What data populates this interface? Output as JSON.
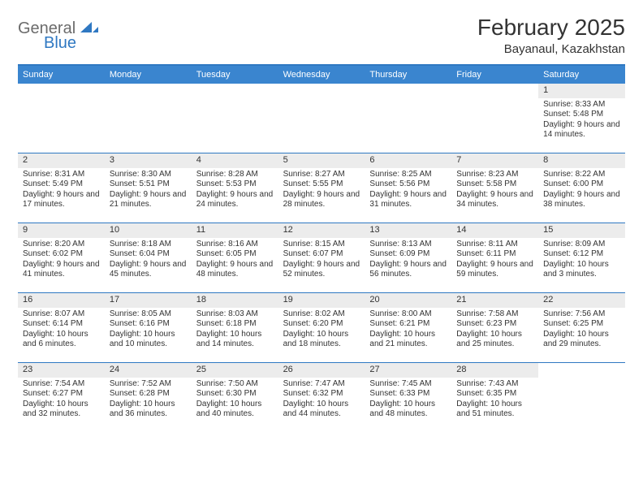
{
  "logo": {
    "word1": "General",
    "word2": "Blue"
  },
  "colors": {
    "brand_blue": "#3a85cf",
    "rule_blue": "#2f78c2",
    "grey_text": "#6b6b6b",
    "daynum_bg": "#ececec",
    "text": "#333333",
    "background": "#ffffff"
  },
  "title": "February 2025",
  "location": "Bayanaul, Kazakhstan",
  "weekdays": [
    "Sunday",
    "Monday",
    "Tuesday",
    "Wednesday",
    "Thursday",
    "Friday",
    "Saturday"
  ],
  "weeks": [
    [
      {
        "empty": true
      },
      {
        "empty": true
      },
      {
        "empty": true
      },
      {
        "empty": true
      },
      {
        "empty": true
      },
      {
        "empty": true
      },
      {
        "day": "1",
        "sunrise": "Sunrise: 8:33 AM",
        "sunset": "Sunset: 5:48 PM",
        "daylight": "Daylight: 9 hours and 14 minutes."
      }
    ],
    [
      {
        "day": "2",
        "sunrise": "Sunrise: 8:31 AM",
        "sunset": "Sunset: 5:49 PM",
        "daylight": "Daylight: 9 hours and 17 minutes."
      },
      {
        "day": "3",
        "sunrise": "Sunrise: 8:30 AM",
        "sunset": "Sunset: 5:51 PM",
        "daylight": "Daylight: 9 hours and 21 minutes."
      },
      {
        "day": "4",
        "sunrise": "Sunrise: 8:28 AM",
        "sunset": "Sunset: 5:53 PM",
        "daylight": "Daylight: 9 hours and 24 minutes."
      },
      {
        "day": "5",
        "sunrise": "Sunrise: 8:27 AM",
        "sunset": "Sunset: 5:55 PM",
        "daylight": "Daylight: 9 hours and 28 minutes."
      },
      {
        "day": "6",
        "sunrise": "Sunrise: 8:25 AM",
        "sunset": "Sunset: 5:56 PM",
        "daylight": "Daylight: 9 hours and 31 minutes."
      },
      {
        "day": "7",
        "sunrise": "Sunrise: 8:23 AM",
        "sunset": "Sunset: 5:58 PM",
        "daylight": "Daylight: 9 hours and 34 minutes."
      },
      {
        "day": "8",
        "sunrise": "Sunrise: 8:22 AM",
        "sunset": "Sunset: 6:00 PM",
        "daylight": "Daylight: 9 hours and 38 minutes."
      }
    ],
    [
      {
        "day": "9",
        "sunrise": "Sunrise: 8:20 AM",
        "sunset": "Sunset: 6:02 PM",
        "daylight": "Daylight: 9 hours and 41 minutes."
      },
      {
        "day": "10",
        "sunrise": "Sunrise: 8:18 AM",
        "sunset": "Sunset: 6:04 PM",
        "daylight": "Daylight: 9 hours and 45 minutes."
      },
      {
        "day": "11",
        "sunrise": "Sunrise: 8:16 AM",
        "sunset": "Sunset: 6:05 PM",
        "daylight": "Daylight: 9 hours and 48 minutes."
      },
      {
        "day": "12",
        "sunrise": "Sunrise: 8:15 AM",
        "sunset": "Sunset: 6:07 PM",
        "daylight": "Daylight: 9 hours and 52 minutes."
      },
      {
        "day": "13",
        "sunrise": "Sunrise: 8:13 AM",
        "sunset": "Sunset: 6:09 PM",
        "daylight": "Daylight: 9 hours and 56 minutes."
      },
      {
        "day": "14",
        "sunrise": "Sunrise: 8:11 AM",
        "sunset": "Sunset: 6:11 PM",
        "daylight": "Daylight: 9 hours and 59 minutes."
      },
      {
        "day": "15",
        "sunrise": "Sunrise: 8:09 AM",
        "sunset": "Sunset: 6:12 PM",
        "daylight": "Daylight: 10 hours and 3 minutes."
      }
    ],
    [
      {
        "day": "16",
        "sunrise": "Sunrise: 8:07 AM",
        "sunset": "Sunset: 6:14 PM",
        "daylight": "Daylight: 10 hours and 6 minutes."
      },
      {
        "day": "17",
        "sunrise": "Sunrise: 8:05 AM",
        "sunset": "Sunset: 6:16 PM",
        "daylight": "Daylight: 10 hours and 10 minutes."
      },
      {
        "day": "18",
        "sunrise": "Sunrise: 8:03 AM",
        "sunset": "Sunset: 6:18 PM",
        "daylight": "Daylight: 10 hours and 14 minutes."
      },
      {
        "day": "19",
        "sunrise": "Sunrise: 8:02 AM",
        "sunset": "Sunset: 6:20 PM",
        "daylight": "Daylight: 10 hours and 18 minutes."
      },
      {
        "day": "20",
        "sunrise": "Sunrise: 8:00 AM",
        "sunset": "Sunset: 6:21 PM",
        "daylight": "Daylight: 10 hours and 21 minutes."
      },
      {
        "day": "21",
        "sunrise": "Sunrise: 7:58 AM",
        "sunset": "Sunset: 6:23 PM",
        "daylight": "Daylight: 10 hours and 25 minutes."
      },
      {
        "day": "22",
        "sunrise": "Sunrise: 7:56 AM",
        "sunset": "Sunset: 6:25 PM",
        "daylight": "Daylight: 10 hours and 29 minutes."
      }
    ],
    [
      {
        "day": "23",
        "sunrise": "Sunrise: 7:54 AM",
        "sunset": "Sunset: 6:27 PM",
        "daylight": "Daylight: 10 hours and 32 minutes."
      },
      {
        "day": "24",
        "sunrise": "Sunrise: 7:52 AM",
        "sunset": "Sunset: 6:28 PM",
        "daylight": "Daylight: 10 hours and 36 minutes."
      },
      {
        "day": "25",
        "sunrise": "Sunrise: 7:50 AM",
        "sunset": "Sunset: 6:30 PM",
        "daylight": "Daylight: 10 hours and 40 minutes."
      },
      {
        "day": "26",
        "sunrise": "Sunrise: 7:47 AM",
        "sunset": "Sunset: 6:32 PM",
        "daylight": "Daylight: 10 hours and 44 minutes."
      },
      {
        "day": "27",
        "sunrise": "Sunrise: 7:45 AM",
        "sunset": "Sunset: 6:33 PM",
        "daylight": "Daylight: 10 hours and 48 minutes."
      },
      {
        "day": "28",
        "sunrise": "Sunrise: 7:43 AM",
        "sunset": "Sunset: 6:35 PM",
        "daylight": "Daylight: 10 hours and 51 minutes."
      },
      {
        "empty": true
      }
    ]
  ]
}
